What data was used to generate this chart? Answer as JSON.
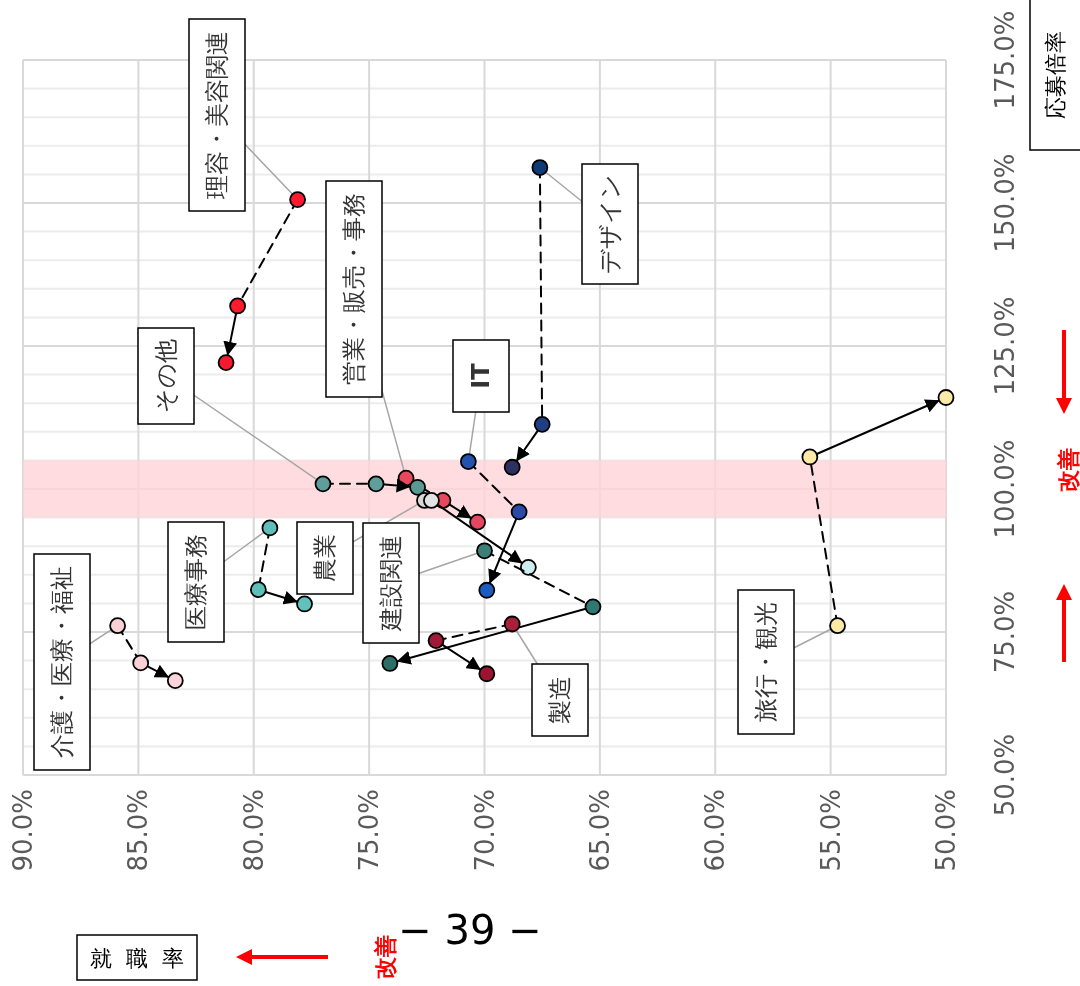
{
  "chart_data": {
    "type": "line",
    "xlabel": "就職率",
    "ylabel": "応募倍率",
    "xlim": [
      90,
      50
    ],
    "ylim": [
      50,
      175
    ],
    "xticks": [
      {
        "value": 90,
        "label": "90.0%"
      },
      {
        "value": 85,
        "label": "85.0%"
      },
      {
        "value": 80,
        "label": "80.0%"
      },
      {
        "value": 75,
        "label": "75.0%"
      },
      {
        "value": 70,
        "label": "70.0%"
      },
      {
        "value": 65,
        "label": "65.0%"
      },
      {
        "value": 60,
        "label": "60.0%"
      },
      {
        "value": 55,
        "label": "55.0%"
      },
      {
        "value": 50,
        "label": "50.0%"
      }
    ],
    "yticks": [
      {
        "value": 50,
        "label": "50.0%"
      },
      {
        "value": 55,
        "label": null
      },
      {
        "value": 60,
        "label": null
      },
      {
        "value": 65,
        "label": null
      },
      {
        "value": 70,
        "label": null
      },
      {
        "value": 75,
        "label": "75.0%"
      },
      {
        "value": 80,
        "label": null
      },
      {
        "value": 85,
        "label": null
      },
      {
        "value": 90,
        "label": null
      },
      {
        "value": 95,
        "label": null
      },
      {
        "value": 100,
        "label": "100.0%"
      },
      {
        "value": 105,
        "label": null
      },
      {
        "value": 110,
        "label": null
      },
      {
        "value": 115,
        "label": null
      },
      {
        "value": 120,
        "label": null
      },
      {
        "value": 125,
        "label": "125.0%"
      },
      {
        "value": 130,
        "label": null
      },
      {
        "value": 135,
        "label": null
      },
      {
        "value": 140,
        "label": null
      },
      {
        "value": 145,
        "label": null
      },
      {
        "value": 150,
        "label": "150.0%"
      },
      {
        "value": 155,
        "label": null
      },
      {
        "value": 160,
        "label": null
      },
      {
        "value": 165,
        "label": null
      },
      {
        "value": 170,
        "label": null
      },
      {
        "value": 175,
        "label": "175.0%"
      }
    ],
    "grid": true,
    "marker": "circle",
    "bands": [
      {
        "axis": "y",
        "from": 95,
        "to": 105,
        "color": "#ffd3d8"
      }
    ],
    "series": [
      {
        "name": "理容・美容関連",
        "x": [
          78.1,
          80.7,
          81.2
        ],
        "values": [
          150.6,
          132.0,
          122.1
        ],
        "colors": [
          "#ff1a2e",
          "#ff1a2e",
          "#f51a2e"
        ]
      },
      {
        "name": "営業・販売・事務",
        "x": [
          73.4,
          71.8,
          70.3
        ],
        "values": [
          101.9,
          98.0,
          94.2
        ],
        "colors": [
          "#e8485e",
          "#e8485e",
          "#e54560"
        ]
      },
      {
        "name": "その他",
        "x": [
          77.0,
          74.7,
          72.9
        ],
        "values": [
          100.9,
          100.9,
          100.3
        ],
        "colors": [
          "#5f9e9a",
          "#5f9e9a",
          "#5a9893"
        ]
      },
      {
        "name": "IT",
        "x": [
          70.7,
          68.5,
          69.9
        ],
        "values": [
          104.8,
          96.0,
          82.3
        ],
        "colors": [
          "#2352ae",
          "#2b4aa8",
          "#1a5cc0"
        ]
      },
      {
        "name": "デザイン",
        "x": [
          67.6,
          67.5,
          68.8
        ],
        "values": [
          156.2,
          111.3,
          103.8
        ],
        "colors": [
          "#0e3a78",
          "#1f3f82",
          "#2e3060"
        ]
      },
      {
        "name": "医療事務",
        "x": [
          79.3,
          79.8,
          77.8
        ],
        "values": [
          93.2,
          82.4,
          79.9
        ],
        "colors": [
          "#5fbfb8",
          "#5fbfb8",
          "#62c2bb"
        ]
      },
      {
        "name": "農業",
        "x": [
          72.6,
          72.3,
          68.1
        ],
        "values": [
          98.0,
          98.0,
          86.3
        ],
        "colors": [
          "#d8d8d8",
          "#e2e2e2",
          "#cdeeee"
        ]
      },
      {
        "name": "建設関連",
        "x": [
          70.0,
          65.3,
          74.1
        ],
        "values": [
          89.2,
          79.4,
          69.5
        ],
        "colors": [
          "#3b8078",
          "#2e7a72",
          "#2a6e66"
        ]
      },
      {
        "name": "介護・医療・福祉",
        "x": [
          85.9,
          84.9,
          83.4
        ],
        "values": [
          76.1,
          69.6,
          66.5
        ],
        "colors": [
          "#f9d0d6",
          "#f9d0d6",
          "#fad4da"
        ]
      },
      {
        "name": "製造",
        "x": [
          68.8,
          72.1,
          69.9
        ],
        "values": [
          76.4,
          73.5,
          67.7
        ],
        "colors": [
          "#a8203c",
          "#a01a38",
          "#9c1530"
        ]
      },
      {
        "name": "旅行・観光",
        "x": [
          54.7,
          55.9,
          50.0
        ],
        "values": [
          76.1,
          105.6,
          116.0
        ],
        "colors": [
          "#fbe9a6",
          "#fbe9a6",
          "#fbeaa8"
        ]
      }
    ],
    "annotations": [
      "改善",
      "改善",
      "− 39 −"
    ]
  }
}
